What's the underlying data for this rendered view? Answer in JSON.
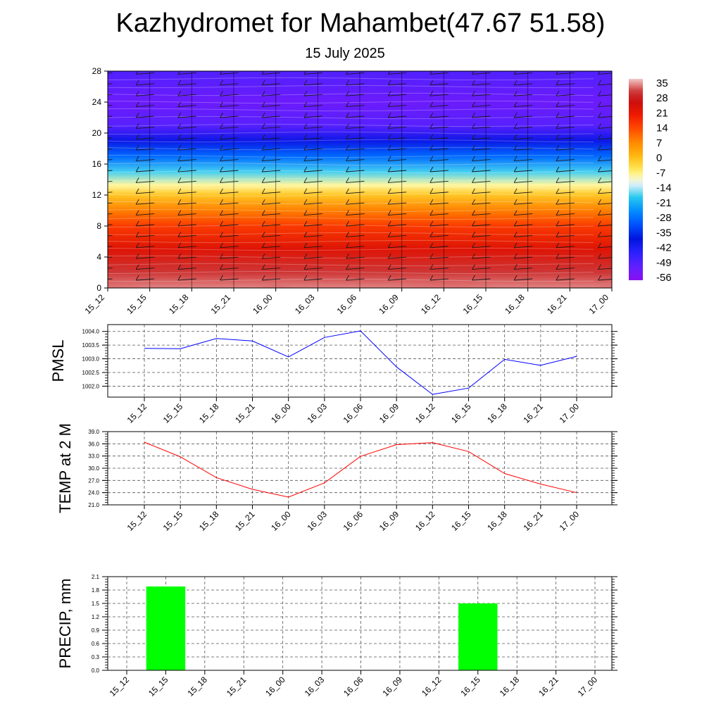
{
  "title": "Kazhydromet for Mahambet(47.67 51.58)",
  "subtitle": "15 July 2025",
  "colors": {
    "pmsl_line": "#0000ff",
    "temp_line": "#ff0000",
    "precip_bar": "#00ff00"
  },
  "chart_data": [
    {
      "type": "heatmap",
      "title": "",
      "x_ticks": [
        "15_12",
        "15_15",
        "15_18",
        "15_21",
        "16_00",
        "16_03",
        "16_06",
        "16_09",
        "16_12",
        "16_15",
        "16_18",
        "16_21",
        "17_00"
      ],
      "y_ticks": [
        0,
        4,
        8,
        12,
        16,
        20,
        24,
        28
      ],
      "ylim": [
        0,
        28
      ],
      "colorbar_labels": [
        "35",
        "28",
        "21",
        "14",
        "7",
        "0",
        "-7",
        "-14",
        "-21",
        "-28",
        "-35",
        "-42",
        "-49",
        "-56"
      ],
      "colorbar_range": [
        -63,
        39
      ],
      "profile": [
        {
          "level": 0,
          "value": 36
        },
        {
          "level": 2,
          "value": 32
        },
        {
          "level": 5,
          "value": 24
        },
        {
          "level": 8,
          "value": 16
        },
        {
          "level": 10,
          "value": 8
        },
        {
          "level": 12,
          "value": -2
        },
        {
          "level": 13.3,
          "value": -10
        },
        {
          "level": 15,
          "value": -20
        },
        {
          "level": 17,
          "value": -32
        },
        {
          "level": 19,
          "value": -44
        },
        {
          "level": 21,
          "value": -55
        },
        {
          "level": 24,
          "value": -58
        },
        {
          "level": 28,
          "value": -54
        }
      ],
      "overlay": "wind barbs",
      "colorbar": "right"
    },
    {
      "type": "line",
      "ylabel": "PMSL",
      "x": [
        "15_12",
        "15_15",
        "15_18",
        "15_21",
        "16_00",
        "16_03",
        "16_06",
        "16_09",
        "16_12",
        "16_15",
        "16_18",
        "16_21",
        "17_00"
      ],
      "values": [
        1003.38,
        1003.37,
        1003.74,
        1003.65,
        1003.07,
        1003.78,
        1004.02,
        1002.7,
        1001.7,
        1001.93,
        1002.98,
        1002.76,
        1003.09
      ],
      "ylim": [
        1001.6,
        1004.25
      ],
      "y_ticks": [
        "1002.0",
        "1002.5",
        "1003.0",
        "1003.5",
        "1004.0"
      ],
      "y_tick_values": [
        1002.0,
        1002.5,
        1003.0,
        1003.5,
        1004.0
      ],
      "grid": true
    },
    {
      "type": "line",
      "ylabel": "TEMP at 2 M",
      "x": [
        "15_12",
        "15_15",
        "15_18",
        "15_21",
        "16_00",
        "16_03",
        "16_06",
        "16_09",
        "16_12",
        "16_15",
        "16_18",
        "16_21",
        "17_00"
      ],
      "values": [
        36.4,
        32.8,
        27.7,
        24.8,
        22.9,
        26.4,
        32.9,
        35.8,
        36.3,
        34.1,
        28.7,
        26.1,
        24.0
      ],
      "ylim": [
        21.0,
        39.0
      ],
      "y_ticks": [
        "21.0",
        "24.0",
        "27.0",
        "30.0",
        "33.0",
        "36.0",
        "39.0"
      ],
      "y_tick_values": [
        21,
        24,
        27,
        30,
        33,
        36,
        39
      ],
      "grid": true
    },
    {
      "type": "bar",
      "ylabel": "PRECIP, mm",
      "categories": [
        "15_12",
        "15_15",
        "15_18",
        "15_21",
        "16_00",
        "16_03",
        "16_06",
        "16_09",
        "16_12",
        "16_15",
        "16_18",
        "16_21",
        "17_00"
      ],
      "values": [
        0,
        1.88,
        0,
        0,
        0,
        0,
        0,
        0,
        0,
        1.5,
        0,
        0,
        0
      ],
      "ylim": [
        0,
        2.1
      ],
      "y_ticks": [
        "0.0",
        "0.3",
        "0.6",
        "0.9",
        "1.2",
        "1.5",
        "1.8",
        "2.1"
      ],
      "y_tick_values": [
        0,
        0.3,
        0.6,
        0.9,
        1.2,
        1.5,
        1.8,
        2.1
      ],
      "grid": true
    }
  ]
}
